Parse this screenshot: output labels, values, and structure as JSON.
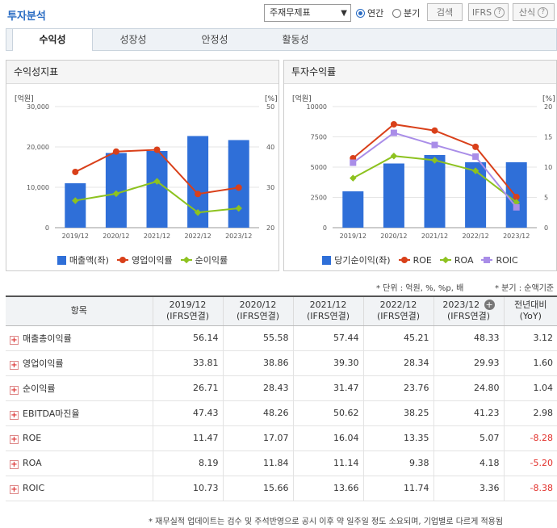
{
  "header": {
    "title": "투자분석",
    "select_value": "주재무제표",
    "radio_annual": "연간",
    "radio_quarter": "분기",
    "search_label": "검색",
    "ifrs_label": "IFRS",
    "calc_label": "산식"
  },
  "tabs": [
    {
      "label": "수익성"
    },
    {
      "label": "성장성"
    },
    {
      "label": "안정성"
    },
    {
      "label": "활동성"
    }
  ],
  "colors": {
    "bar": "#2f6fd8",
    "red": "#d9401a",
    "green": "#8dc21f",
    "purple": "#a98de8",
    "accent": "#2a6cc3"
  },
  "chart_left": {
    "title": "수익성지표",
    "left_unit": "[억원]",
    "right_unit": "[%]",
    "chart_data": {
      "type": "bar",
      "categories": [
        "2019/12",
        "2020/12",
        "2021/12",
        "2022/12",
        "2023/12"
      ],
      "y_left_ticks": [
        "30,000",
        "20,000",
        "10,000",
        "0"
      ],
      "y_right_ticks": [
        "50",
        "40",
        "30",
        "20"
      ],
      "ylim_left": [
        0,
        30000
      ],
      "ylim_right": [
        20,
        50
      ],
      "bars": {
        "name": "매출액(좌)",
        "values": [
          11000,
          18500,
          19000,
          22700,
          21700
        ]
      },
      "series": [
        {
          "name": "영업이익률",
          "values": [
            33.81,
            38.86,
            39.3,
            28.34,
            29.93
          ]
        },
        {
          "name": "순이익률",
          "values": [
            26.71,
            28.43,
            31.47,
            23.76,
            24.8
          ]
        }
      ]
    }
  },
  "chart_right": {
    "title": "투자수익률",
    "left_unit": "[억원]",
    "right_unit": "[%]",
    "chart_data": {
      "type": "bar",
      "categories": [
        "2019/12",
        "2020/12",
        "2021/12",
        "2022/12",
        "2023/12"
      ],
      "y_left_ticks": [
        "10000",
        "7500",
        "5000",
        "2500",
        "0"
      ],
      "y_right_ticks": [
        "20",
        "15",
        "10",
        "5",
        "0"
      ],
      "ylim_left": [
        0,
        10000
      ],
      "ylim_right": [
        0,
        20
      ],
      "bars": {
        "name": "당기순이익(좌)",
        "values": [
          3000,
          5300,
          6000,
          5400,
          5400
        ]
      },
      "series": [
        {
          "name": "ROE",
          "values": [
            11.47,
            17.07,
            16.04,
            13.35,
            5.07
          ]
        },
        {
          "name": "ROA",
          "values": [
            8.19,
            11.84,
            11.14,
            9.38,
            4.18
          ]
        },
        {
          "name": "ROIC",
          "values": [
            10.73,
            15.66,
            13.66,
            11.74,
            3.36
          ]
        }
      ]
    }
  },
  "notes": {
    "unit": "* 단위 : 억원, %, %p, 배",
    "quarter": "* 분기 : 순액기준"
  },
  "table": {
    "head_item": "항목",
    "columns": [
      {
        "l1": "2019/12",
        "l2": "(IFRS연결)"
      },
      {
        "l1": "2020/12",
        "l2": "(IFRS연결)"
      },
      {
        "l1": "2021/12",
        "l2": "(IFRS연결)"
      },
      {
        "l1": "2022/12",
        "l2": "(IFRS연결)"
      },
      {
        "l1": "2023/12",
        "l2": "(IFRS연결)"
      }
    ],
    "yoy_l1": "전년대비",
    "yoy_l2": "(YoY)",
    "rows": [
      {
        "name": "매출총이익률",
        "v": [
          "56.14",
          "55.58",
          "57.44",
          "45.21",
          "48.33"
        ],
        "yoy": "3.12"
      },
      {
        "name": "영업이익률",
        "v": [
          "33.81",
          "38.86",
          "39.30",
          "28.34",
          "29.93"
        ],
        "yoy": "1.60"
      },
      {
        "name": "순이익률",
        "v": [
          "26.71",
          "28.43",
          "31.47",
          "23.76",
          "24.80"
        ],
        "yoy": "1.04"
      },
      {
        "name": "EBITDA마진율",
        "v": [
          "47.43",
          "48.26",
          "50.62",
          "38.25",
          "41.23"
        ],
        "yoy": "2.98"
      },
      {
        "name": "ROE",
        "v": [
          "11.47",
          "17.07",
          "16.04",
          "13.35",
          "5.07"
        ],
        "yoy": "-8.28"
      },
      {
        "name": "ROA",
        "v": [
          "8.19",
          "11.84",
          "11.14",
          "9.38",
          "4.18"
        ],
        "yoy": "-5.20"
      },
      {
        "name": "ROIC",
        "v": [
          "10.73",
          "15.66",
          "13.66",
          "11.74",
          "3.36"
        ],
        "yoy": "-8.38"
      }
    ]
  },
  "footer": "* 재무실적 업데이트는 검수 및 주석반영으로 공시 이후 약 일주일 정도 소요되며, 기업별로 다르게 적용됨"
}
